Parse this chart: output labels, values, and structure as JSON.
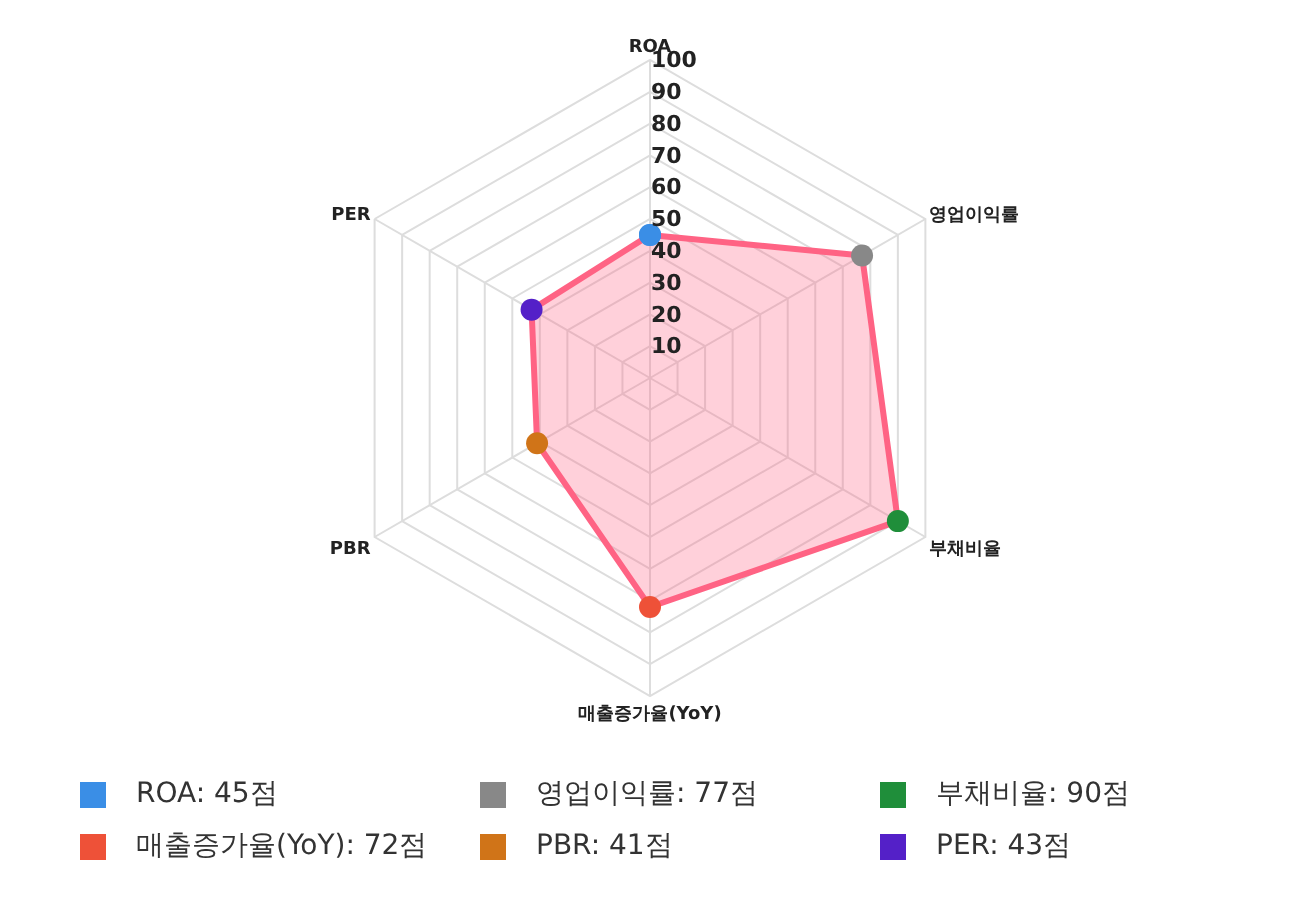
{
  "chart_data": {
    "type": "radar",
    "categories": [
      "ROA",
      "영업이익률",
      "부채비율",
      "매출증가율(YoY)",
      "PBR",
      "PER"
    ],
    "ylim": [
      0,
      100
    ],
    "yticks": [
      10,
      20,
      30,
      40,
      50,
      60,
      70,
      80,
      90,
      100
    ],
    "grid": true,
    "marker": "circle",
    "values": [
      45,
      77,
      90,
      72,
      41,
      43
    ],
    "color": "#ff6384",
    "colors": [
      "#3a8ee6",
      "#888888",
      "#1f8e3a",
      "#ee5138",
      "#d07418",
      "#5420c8"
    ],
    "annotations": [
      "ROA: 45점",
      "영업이익률: 77점",
      "부채비율: 90점",
      "매출증가율(YoY): 72점",
      "PBR: 41점",
      "PER: 43점"
    ]
  }
}
